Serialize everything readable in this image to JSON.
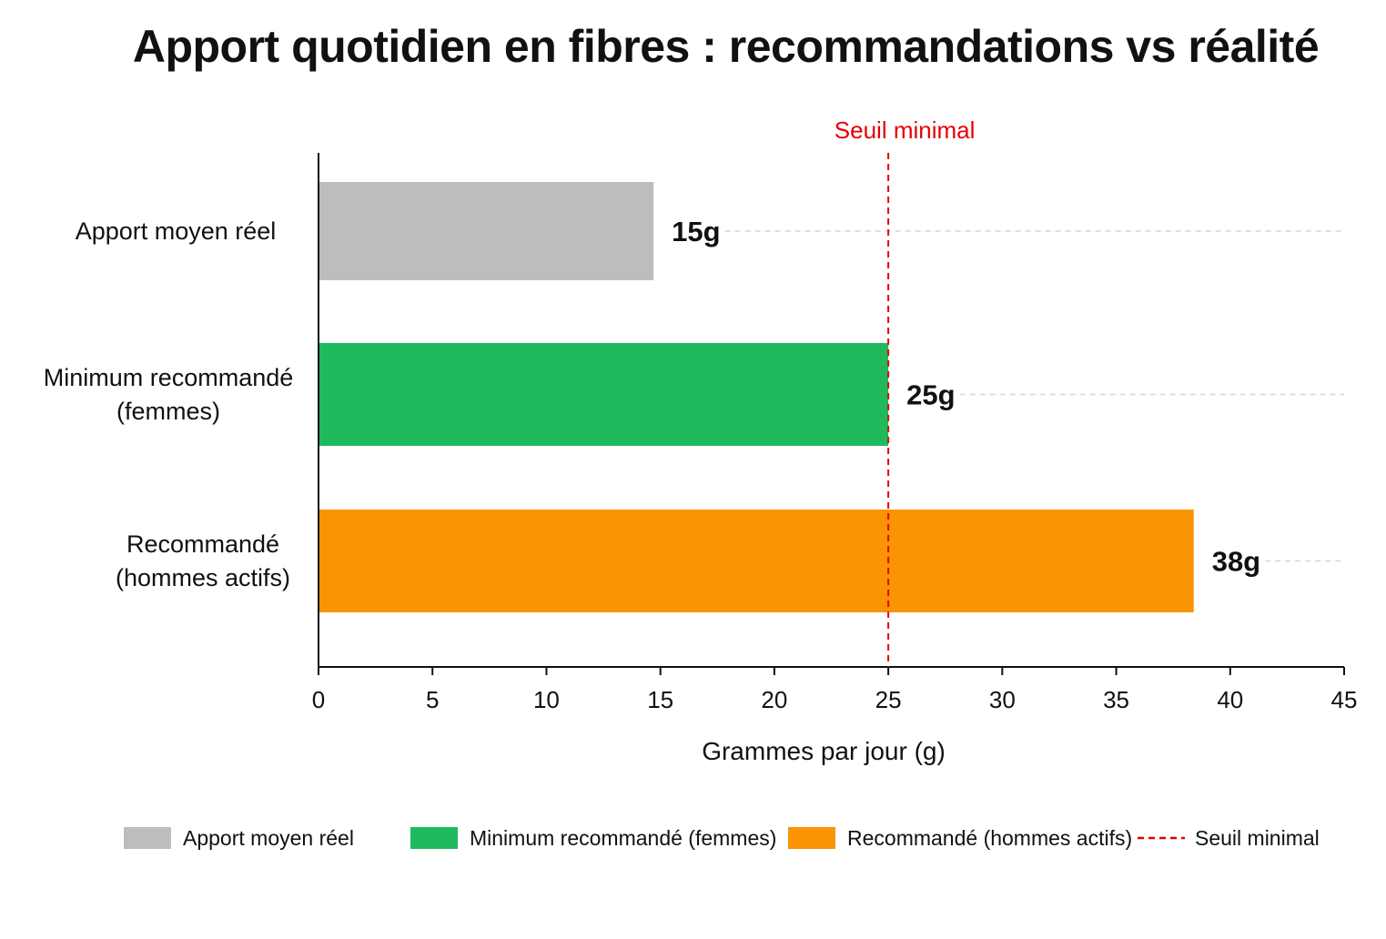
{
  "chart_data": {
    "type": "bar",
    "orientation": "horizontal",
    "title": "Apport quotidien en fibres : recommandations vs réalité",
    "xlabel": "Grammes par jour (g)",
    "ylabel": "",
    "xlim": [
      0,
      45
    ],
    "x_ticks": [
      0,
      5,
      10,
      15,
      20,
      25,
      30,
      35,
      40,
      45
    ],
    "grid": "horizontal dashed guide lines from value labels",
    "legend_position": "bottom",
    "categories": [
      {
        "lines": [
          "Apport moyen réel"
        ],
        "legend": "Apport moyen réel",
        "value": 14.7,
        "value_label": "15g",
        "color": "#bdbdbf"
      },
      {
        "lines": [
          "Minimum recommandé",
          "(femmes)"
        ],
        "legend": "Minimum recommandé (femmes)",
        "value": 25,
        "value_label": "25g",
        "color": "#1fba5e"
      },
      {
        "lines": [
          "Recommandé",
          "(hommes actifs)"
        ],
        "legend": "Recommandé (hommes actifs)",
        "value": 38.4,
        "value_label": "38g",
        "color": "#fb9405"
      }
    ],
    "reference_line": {
      "value": 25,
      "label": "Seuil minimal",
      "color": "#e60000",
      "style": "dashed"
    }
  }
}
